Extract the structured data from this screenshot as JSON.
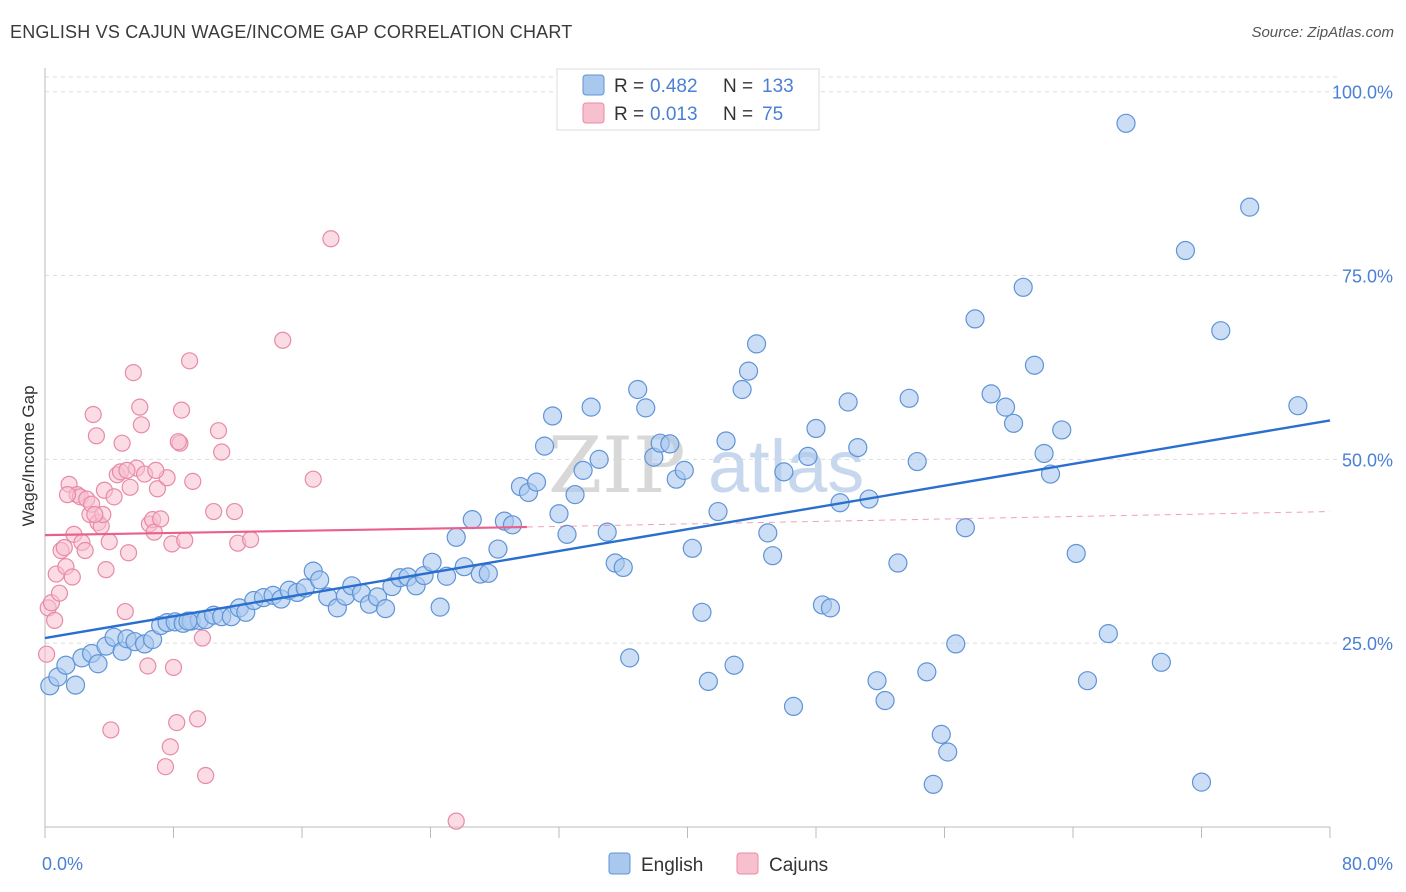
{
  "title": "ENGLISH VS CAJUN WAGE/INCOME GAP CORRELATION CHART",
  "source": "Source: ZipAtlas.com",
  "colors": {
    "english_fill": "#a9c8ee",
    "english_stroke": "#5f94d6",
    "english_line": "#2a6fcf",
    "cajun_fill": "#f7c0cf",
    "cajun_stroke": "#e88aa6",
    "cajun_line": "#e8608c",
    "tick_text": "#4a7fd4",
    "grid": "#dddddd"
  },
  "watermark": {
    "part1": "ZIP",
    "part2": "atlas"
  },
  "chart_data": {
    "type": "scatter",
    "title": "ENGLISH VS CAJUN WAGE/INCOME GAP CORRELATION CHART",
    "xlabel": "",
    "ylabel": "Wage/Income Gap",
    "xlim": [
      0,
      80
    ],
    "ylim": [
      0,
      102
    ],
    "x_tick_labels": [
      "0.0%",
      "80.0%"
    ],
    "y_ticks": [
      25,
      50,
      75,
      100
    ],
    "y_tick_labels": [
      "25.0%",
      "50.0%",
      "75.0%",
      "100.0%"
    ],
    "grid": true,
    "legend_position": "top-center",
    "stats": [
      {
        "series": "English",
        "r_label": "R =",
        "r": "0.482",
        "n_label": "N =",
        "n": "133"
      },
      {
        "series": "Cajuns",
        "r_label": "R =",
        "r": "0.013",
        "n_label": "N =",
        "n": "75"
      }
    ],
    "series": [
      {
        "name": "English",
        "trend": {
          "x": [
            0,
            80
          ],
          "y": [
            25.7,
            55.3
          ]
        },
        "points": [
          [
            0.3,
            19.2
          ],
          [
            0.8,
            20.4
          ],
          [
            1.3,
            22.0
          ],
          [
            1.9,
            19.3
          ],
          [
            2.3,
            23.0
          ],
          [
            2.9,
            23.6
          ],
          [
            3.3,
            22.2
          ],
          [
            3.8,
            24.6
          ],
          [
            4.3,
            25.8
          ],
          [
            4.8,
            23.9
          ],
          [
            5.1,
            25.6
          ],
          [
            5.6,
            25.2
          ],
          [
            6.2,
            24.9
          ],
          [
            6.7,
            25.5
          ],
          [
            7.2,
            27.4
          ],
          [
            7.6,
            27.8
          ],
          [
            8.1,
            27.9
          ],
          [
            8.6,
            27.7
          ],
          [
            9.1,
            28.0
          ],
          [
            9.6,
            28.1
          ],
          [
            10.0,
            28.2
          ],
          [
            10.5,
            28.8
          ],
          [
            11.0,
            28.6
          ],
          [
            11.6,
            28.6
          ],
          [
            12.1,
            29.8
          ],
          [
            12.5,
            29.2
          ],
          [
            13.0,
            30.8
          ],
          [
            13.6,
            31.2
          ],
          [
            14.2,
            31.5
          ],
          [
            14.7,
            31.0
          ],
          [
            15.2,
            32.2
          ],
          [
            15.7,
            31.9
          ],
          [
            16.2,
            32.5
          ],
          [
            16.7,
            34.8
          ],
          [
            17.1,
            33.6
          ],
          [
            17.6,
            31.3
          ],
          [
            18.2,
            29.8
          ],
          [
            18.7,
            31.4
          ],
          [
            19.1,
            32.8
          ],
          [
            19.7,
            31.8
          ],
          [
            20.2,
            30.3
          ],
          [
            20.7,
            31.3
          ],
          [
            21.2,
            29.7
          ],
          [
            21.6,
            32.7
          ],
          [
            22.1,
            33.9
          ],
          [
            22.6,
            34.0
          ],
          [
            23.1,
            32.8
          ],
          [
            23.6,
            34.2
          ],
          [
            24.1,
            36.0
          ],
          [
            24.6,
            29.9
          ],
          [
            25.0,
            34.1
          ],
          [
            25.6,
            39.4
          ],
          [
            26.1,
            35.4
          ],
          [
            26.6,
            41.8
          ],
          [
            27.1,
            34.4
          ],
          [
            27.6,
            34.5
          ],
          [
            28.2,
            37.8
          ],
          [
            28.6,
            41.6
          ],
          [
            29.1,
            41.1
          ],
          [
            29.6,
            46.3
          ],
          [
            30.1,
            45.5
          ],
          [
            30.6,
            46.9
          ],
          [
            31.1,
            51.8
          ],
          [
            31.6,
            55.9
          ],
          [
            32.0,
            42.6
          ],
          [
            32.5,
            39.8
          ],
          [
            33.0,
            45.2
          ],
          [
            33.5,
            48.5
          ],
          [
            34.0,
            57.1
          ],
          [
            34.5,
            50.0
          ],
          [
            35.0,
            40.1
          ],
          [
            35.5,
            35.9
          ],
          [
            36.0,
            35.3
          ],
          [
            36.4,
            23.0
          ],
          [
            36.9,
            59.5
          ],
          [
            37.4,
            57.0
          ],
          [
            37.9,
            50.3
          ],
          [
            38.3,
            52.2
          ],
          [
            38.9,
            52.1
          ],
          [
            39.3,
            47.3
          ],
          [
            39.8,
            48.5
          ],
          [
            40.3,
            37.9
          ],
          [
            40.9,
            29.2
          ],
          [
            41.3,
            19.8
          ],
          [
            41.9,
            42.9
          ],
          [
            42.4,
            52.5
          ],
          [
            42.9,
            22.0
          ],
          [
            43.4,
            59.5
          ],
          [
            43.8,
            62.0
          ],
          [
            44.3,
            65.7
          ],
          [
            45.0,
            40.0
          ],
          [
            45.3,
            36.9
          ],
          [
            46.0,
            48.3
          ],
          [
            46.6,
            16.4
          ],
          [
            47.5,
            50.4
          ],
          [
            48.0,
            54.2
          ],
          [
            48.4,
            30.2
          ],
          [
            48.9,
            29.8
          ],
          [
            49.5,
            44.1
          ],
          [
            50.0,
            57.8
          ],
          [
            50.6,
            51.6
          ],
          [
            51.3,
            44.6
          ],
          [
            51.8,
            19.9
          ],
          [
            52.3,
            17.2
          ],
          [
            53.1,
            35.9
          ],
          [
            53.8,
            58.3
          ],
          [
            54.3,
            49.7
          ],
          [
            54.9,
            21.1
          ],
          [
            55.3,
            5.8
          ],
          [
            55.8,
            12.6
          ],
          [
            56.2,
            10.2
          ],
          [
            56.7,
            24.9
          ],
          [
            57.3,
            40.7
          ],
          [
            57.9,
            69.1
          ],
          [
            58.9,
            58.9
          ],
          [
            59.8,
            57.1
          ],
          [
            60.3,
            54.9
          ],
          [
            60.9,
            73.4
          ],
          [
            61.6,
            62.8
          ],
          [
            62.2,
            50.8
          ],
          [
            62.6,
            48.0
          ],
          [
            63.3,
            54.0
          ],
          [
            64.2,
            37.2
          ],
          [
            64.9,
            19.9
          ],
          [
            66.2,
            26.3
          ],
          [
            67.3,
            95.7
          ],
          [
            69.5,
            22.4
          ],
          [
            71.0,
            78.4
          ],
          [
            72.0,
            6.1
          ],
          [
            73.2,
            67.5
          ],
          [
            75.0,
            84.3
          ],
          [
            78.0,
            57.3
          ],
          [
            8.9,
            28.0
          ]
        ]
      },
      {
        "name": "Cajuns",
        "trend": {
          "x": [
            0,
            30
          ],
          "y": [
            39.7,
            40.8
          ]
        },
        "trend_ext": {
          "x": [
            30,
            80
          ],
          "y": [
            40.8,
            42.9
          ]
        },
        "points": [
          [
            0.1,
            23.5
          ],
          [
            0.2,
            29.8
          ],
          [
            0.4,
            30.5
          ],
          [
            0.6,
            28.1
          ],
          [
            0.7,
            34.4
          ],
          [
            0.9,
            31.8
          ],
          [
            1.0,
            37.6
          ],
          [
            1.2,
            38.0
          ],
          [
            1.3,
            35.4
          ],
          [
            1.5,
            46.6
          ],
          [
            1.7,
            34.0
          ],
          [
            1.8,
            39.8
          ],
          [
            2.0,
            45.2
          ],
          [
            2.2,
            44.9
          ],
          [
            2.3,
            38.7
          ],
          [
            2.5,
            37.6
          ],
          [
            2.6,
            44.6
          ],
          [
            2.8,
            42.5
          ],
          [
            3.0,
            56.1
          ],
          [
            3.2,
            53.2
          ],
          [
            3.3,
            41.4
          ],
          [
            3.5,
            40.9
          ],
          [
            3.7,
            45.8
          ],
          [
            3.8,
            35.0
          ],
          [
            4.0,
            38.8
          ],
          [
            4.1,
            13.2
          ],
          [
            4.3,
            44.9
          ],
          [
            4.5,
            47.9
          ],
          [
            4.7,
            48.3
          ],
          [
            4.8,
            52.2
          ],
          [
            5.0,
            29.3
          ],
          [
            5.2,
            37.3
          ],
          [
            5.3,
            46.2
          ],
          [
            5.5,
            61.8
          ],
          [
            5.7,
            48.8
          ],
          [
            5.9,
            57.1
          ],
          [
            6.0,
            54.7
          ],
          [
            6.2,
            48.0
          ],
          [
            6.4,
            21.9
          ],
          [
            6.5,
            41.2
          ],
          [
            6.7,
            41.8
          ],
          [
            6.8,
            40.1
          ],
          [
            7.0,
            46.0
          ],
          [
            7.2,
            41.9
          ],
          [
            7.5,
            8.2
          ],
          [
            7.6,
            47.5
          ],
          [
            7.8,
            10.9
          ],
          [
            7.9,
            38.5
          ],
          [
            8.0,
            21.7
          ],
          [
            8.2,
            14.2
          ],
          [
            8.4,
            52.2
          ],
          [
            8.5,
            56.7
          ],
          [
            8.7,
            39.0
          ],
          [
            9.0,
            63.4
          ],
          [
            9.2,
            47.0
          ],
          [
            9.5,
            14.7
          ],
          [
            9.8,
            25.7
          ],
          [
            10.0,
            7.0
          ],
          [
            10.5,
            42.9
          ],
          [
            10.8,
            53.9
          ],
          [
            11.0,
            51.0
          ],
          [
            11.8,
            42.9
          ],
          [
            12.0,
            38.6
          ],
          [
            12.8,
            39.1
          ],
          [
            14.8,
            66.2
          ],
          [
            16.7,
            47.3
          ],
          [
            17.8,
            80.0
          ],
          [
            25.6,
            0.8
          ],
          [
            2.9,
            43.9
          ],
          [
            6.9,
            48.5
          ],
          [
            3.6,
            42.5
          ],
          [
            1.4,
            45.2
          ],
          [
            5.1,
            48.5
          ],
          [
            8.3,
            52.4
          ],
          [
            3.1,
            42.5
          ]
        ]
      }
    ]
  }
}
